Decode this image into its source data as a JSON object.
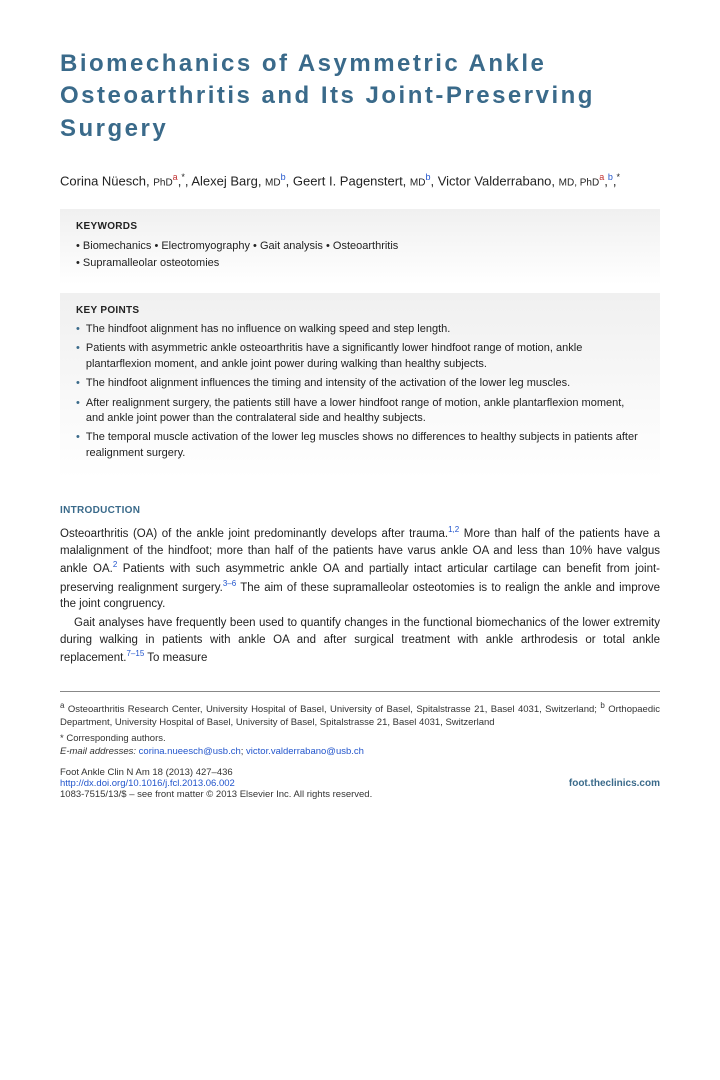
{
  "title": "Biomechanics of Asymmetric Ankle Osteoarthritis and Its Joint-Preserving Surgery",
  "authors": [
    {
      "name": "Corina Nüesch",
      "cred": "PhD",
      "aff": [
        "a"
      ],
      "corr": true
    },
    {
      "name": "Alexej Barg",
      "cred": "MD",
      "aff": [
        "b"
      ],
      "corr": false
    },
    {
      "name": "Geert I. Pagenstert",
      "cred": "MD",
      "aff": [
        "b"
      ],
      "corr": false
    },
    {
      "name": "Victor Valderrabano",
      "cred": "MD, PhD",
      "aff": [
        "a",
        "b"
      ],
      "corr": true
    }
  ],
  "keywords_heading": "KEYWORDS",
  "keywords": [
    "Biomechanics",
    "Electromyography",
    "Gait analysis",
    "Osteoarthritis",
    "Supramalleolar osteotomies"
  ],
  "keypoints_heading": "KEY POINTS",
  "keypoints": [
    "The hindfoot alignment has no influence on walking speed and step length.",
    "Patients with asymmetric ankle osteoarthritis have a significantly lower hindfoot range of motion, ankle plantarflexion moment, and ankle joint power during walking than healthy subjects.",
    "The hindfoot alignment influences the timing and intensity of the activation of the lower leg muscles.",
    "After realignment surgery, the patients still have a lower hindfoot range of motion, ankle plantarflexion moment, and ankle joint power than the contralateral side and healthy subjects.",
    "The temporal muscle activation of the lower leg muscles shows no differences to healthy subjects in patients after realignment surgery."
  ],
  "intro_heading": "INTRODUCTION",
  "intro_paras": [
    {
      "text": "Osteoarthritis (OA) of the ankle joint predominantly develops after trauma.{REF:1,2} More than half of the patients have a malalignment of the hindfoot; more than half of the patients have varus ankle OA and less than 10% have valgus ankle OA.{REF:2} Patients with such asymmetric ankle OA and partially intact articular cartilage can benefit from joint-preserving realignment surgery.{REF:3–6} The aim of these supramalleolar osteotomies is to realign the ankle and improve the joint congruency.",
      "indent": false
    },
    {
      "text": "Gait analyses have frequently been used to quantify changes in the functional biomechanics of the lower extremity during walking in patients with ankle OA and after surgical treatment with ankle arthrodesis or total ankle replacement.{REF:7–15} To measure",
      "indent": true
    }
  ],
  "affiliations": {
    "a": "Osteoarthritis Research Center, University Hospital of Basel, University of Basel, Spitalstrasse 21, Basel 4031, Switzerland",
    "b": "Orthopaedic Department, University Hospital of Basel, University of Basel, Spitalstrasse 21, Basel 4031, Switzerland"
  },
  "corr_label": "* Corresponding authors.",
  "email_label": "E-mail addresses:",
  "emails": [
    "corina.nueesch@usb.ch",
    "victor.valderrabano@usb.ch"
  ],
  "citation": {
    "line1": "Foot Ankle Clin N Am 18 (2013) 427–436",
    "doi": "http://dx.doi.org/10.1016/j.fcl.2013.06.002",
    "journal_url": "foot.theclinics.com",
    "line3": "1083-7515/13/$ – see front matter © 2013 Elsevier Inc. All rights reserved."
  },
  "colors": {
    "heading_blue": "#3a6a8a",
    "link_blue": "#2255cc",
    "aff_a_red": "#c03030",
    "box_grad_top": "#f0f0f0",
    "box_grad_bottom": "#ffffff",
    "body_text": "#222222"
  }
}
